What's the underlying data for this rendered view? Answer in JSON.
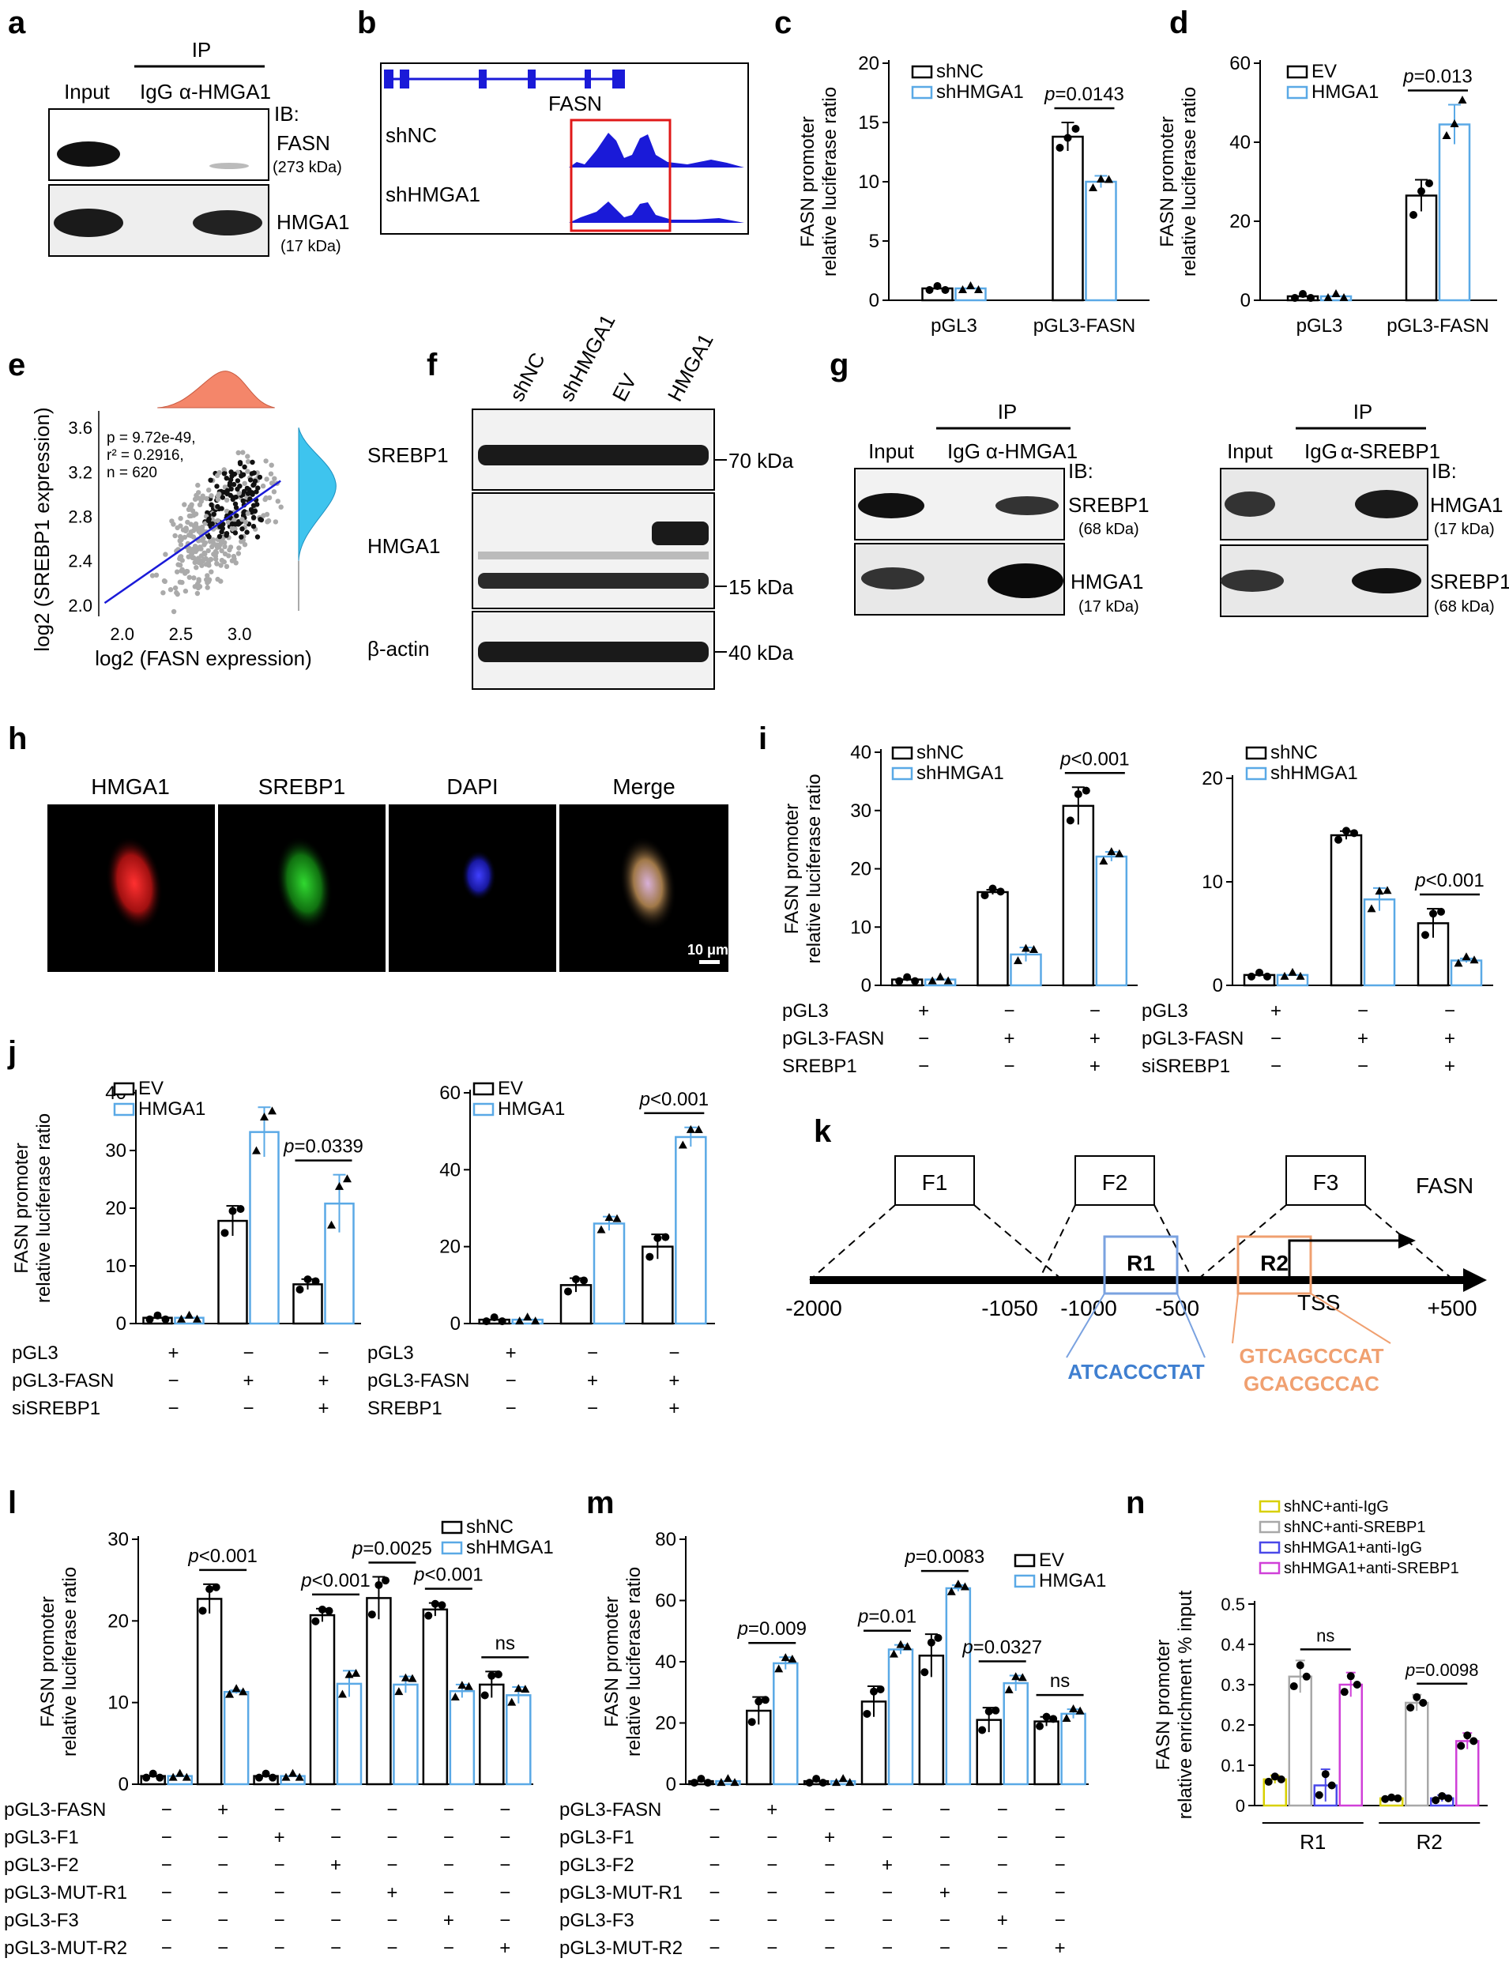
{
  "panel_letters": {
    "a": "a",
    "b": "b",
    "c": "c",
    "d": "d",
    "e": "e",
    "f": "f",
    "g": "g",
    "h": "h",
    "i": "i",
    "j": "j",
    "k": "k",
    "l": "l",
    "m": "m",
    "n": "n"
  },
  "panel_a": {
    "ip": "IP",
    "lanes": [
      "Input",
      "IgG",
      "α-HMGA1"
    ],
    "ib": "IB:",
    "bands": [
      {
        "label": "FASN",
        "kda": "(273 kDa)"
      },
      {
        "label": "HMGA1",
        "kda": "(17 kDa)"
      }
    ]
  },
  "panel_b": {
    "gene": "FASN",
    "tracks": [
      "shNC",
      "shHMGA1"
    ]
  },
  "panel_c": {
    "chart_data": {
      "type": "bar",
      "ylabel": "FASN promoter\nrelative luciferase ratio",
      "ylim": [
        0,
        20
      ],
      "yticks": [
        0,
        5,
        10,
        15,
        20
      ],
      "categories": [
        "pGL3",
        "pGL3-FASN"
      ],
      "series": [
        {
          "name": "shNC",
          "values": [
            1.0,
            13.8
          ],
          "sd": [
            0,
            1.2
          ],
          "points": [
            [
              1,
              1,
              1
            ],
            [
              13,
              13.5,
              14.6
            ]
          ]
        },
        {
          "name": "shHMGA1",
          "values": [
            1.0,
            10.0
          ],
          "sd": [
            0,
            0.5
          ],
          "points": [
            [
              1,
              1,
              1
            ],
            [
              9.6,
              10,
              10.3
            ]
          ]
        }
      ],
      "annotations": [
        {
          "text": "p=0.0143",
          "between": "pGL3-FASN"
        }
      ]
    }
  },
  "panel_d": {
    "chart_data": {
      "type": "bar",
      "ylabel": "FASN promoter\nrelative luciferase ratio",
      "ylim": [
        0,
        60
      ],
      "yticks": [
        0,
        20,
        40,
        60
      ],
      "categories": [
        "pGL3",
        "pGL3-FASN"
      ],
      "series": [
        {
          "name": "EV",
          "values": [
            1.0,
            26.5
          ],
          "sd": [
            0,
            4
          ],
          "points": [
            [
              1,
              1,
              1
            ],
            [
              22,
              27,
              30
            ]
          ]
        },
        {
          "name": "HMGA1",
          "values": [
            1.0,
            44.5
          ],
          "sd": [
            0,
            5
          ],
          "points": [
            [
              1,
              1,
              1
            ],
            [
              42,
              44,
              51
            ]
          ]
        }
      ],
      "annotations": [
        {
          "text": "p=0.013",
          "between": "pGL3-FASN"
        }
      ]
    }
  },
  "panel_e": {
    "chart_data": {
      "type": "scatter",
      "xlabel": "log2 (FASN expression)",
      "ylabel": "log2 (SREBP1 expression)",
      "xticks": [
        "2.0",
        "2.5",
        "3.0"
      ],
      "yticks": [
        "2.0",
        "2.4",
        "2.8",
        "3.2",
        "3.6"
      ],
      "xlim": [
        1.8,
        3.45
      ],
      "ylim": [
        1.9,
        3.75
      ],
      "stats": [
        "p = 9.72e-49,",
        "r² = 0.2916,",
        "n = 620"
      ],
      "fit": {
        "x1": 1.85,
        "y1": 2.02,
        "x2": 3.35,
        "y2": 3.12
      }
    }
  },
  "panel_f": {
    "lanes": [
      "shNC",
      "shHMGA1",
      "EV",
      "HMGA1"
    ],
    "rows": [
      "SREBP1",
      "HMGA1",
      "β-actin"
    ],
    "markers": [
      "70 kDa",
      "15 kDa",
      "40 kDa"
    ]
  },
  "panel_g": {
    "left": {
      "ip": "IP",
      "lanes": [
        "Input",
        "IgG",
        "α-HMGA1"
      ],
      "ib": "IB:",
      "bands": [
        {
          "label": "SREBP1",
          "kda": "(68 kDa)"
        },
        {
          "label": "HMGA1",
          "kda": "(17 kDa)"
        }
      ]
    },
    "right": {
      "ip": "IP",
      "lanes": [
        "Input",
        "IgG",
        "α-SREBP1"
      ],
      "ib": "IB:",
      "bands": [
        {
          "label": "HMGA1",
          "kda": "(17 kDa)"
        },
        {
          "label": "SREBP1",
          "kda": "(68 kDa)"
        }
      ]
    }
  },
  "panel_h": {
    "channels": [
      "HMGA1",
      "SREBP1",
      "DAPI",
      "Merge"
    ],
    "scale": "10 μm"
  },
  "panel_i": [
    {
      "chart_data": {
        "type": "bar",
        "ylabel": "FASN promoter\nrelative luciferase ratio",
        "ylim": [
          0,
          40
        ],
        "yticks": [
          0,
          10,
          20,
          30,
          40
        ],
        "series": [
          {
            "name": "shNC",
            "values": [
              1.0,
              16.0,
              30.8
            ],
            "sd": [
              0,
              0.4,
              3.2
            ]
          },
          {
            "name": "shHMGA1",
            "values": [
              1.0,
              5.3,
              22.1
            ],
            "sd": [
              0,
              1.2,
              0.8
            ]
          }
        ],
        "annotations": [
          {
            "text": "p<0.001",
            "group": 3
          }
        ],
        "rows": [
          {
            "label": "pGL3",
            "signs": [
              "+",
              "-",
              "-"
            ]
          },
          {
            "label": "pGL3-FASN",
            "signs": [
              "-",
              "+",
              "+"
            ]
          },
          {
            "label": "SREBP1",
            "signs": [
              "-",
              "-",
              "+"
            ]
          }
        ]
      }
    },
    {
      "chart_data": {
        "type": "bar",
        "ylabel": "",
        "ylim": [
          0,
          20
        ],
        "yticks": [
          0,
          10,
          20
        ],
        "series": [
          {
            "name": "shNC",
            "values": [
              1.0,
              14.5,
              6.0
            ],
            "sd": [
              0,
              0.4,
              1.4
            ]
          },
          {
            "name": "shHMGA1",
            "values": [
              1.0,
              8.3,
              2.4
            ],
            "sd": [
              0,
              1.1,
              0.2
            ]
          }
        ],
        "annotations": [
          {
            "text": "p<0.001",
            "group": 3
          }
        ],
        "rows": [
          {
            "label": "pGL3",
            "signs": [
              "+",
              "-",
              "-"
            ]
          },
          {
            "label": "pGL3-FASN",
            "signs": [
              "-",
              "+",
              "+"
            ]
          },
          {
            "label": "siSREBP1",
            "signs": [
              "-",
              "-",
              "+"
            ]
          }
        ]
      }
    }
  ],
  "panel_j": [
    {
      "chart_data": {
        "type": "bar",
        "ylabel": "FASN promoter\nrelative luciferase ratio",
        "ylim": [
          0,
          40
        ],
        "yticks": [
          0,
          10,
          20,
          30,
          40
        ],
        "series": [
          {
            "name": "EV",
            "values": [
              1.0,
              17.8,
              6.8
            ],
            "sd": [
              0,
              2.6,
              0.9
            ]
          },
          {
            "name": "HMGA1",
            "values": [
              1.0,
              33.2,
              20.8
            ],
            "sd": [
              0,
              4.3,
              5.0
            ]
          }
        ],
        "annotations": [
          {
            "text": "p=0.0339",
            "group": 3
          }
        ],
        "rows": [
          {
            "label": "pGL3",
            "signs": [
              "+",
              "-",
              "-"
            ]
          },
          {
            "label": "pGL3-FASN",
            "signs": [
              "-",
              "+",
              "+"
            ]
          },
          {
            "label": "siSREBP1",
            "signs": [
              "-",
              "-",
              "+"
            ]
          }
        ]
      }
    },
    {
      "chart_data": {
        "type": "bar",
        "ylabel": "",
        "ylim": [
          0,
          60
        ],
        "yticks": [
          0,
          20,
          40,
          60
        ],
        "series": [
          {
            "name": "EV",
            "values": [
              1.0,
              10.0,
              20.0
            ],
            "sd": [
              0,
              1.8,
              3.2
            ]
          },
          {
            "name": "HMGA1",
            "values": [
              1.0,
              26.0,
              48.5
            ],
            "sd": [
              0,
              1.8,
              2.5
            ]
          }
        ],
        "annotations": [
          {
            "text": "p<0.001",
            "group": 3
          }
        ],
        "rows": [
          {
            "label": "pGL3",
            "signs": [
              "+",
              "-",
              "-"
            ]
          },
          {
            "label": "pGL3-FASN",
            "signs": [
              "-",
              "+",
              "+"
            ]
          },
          {
            "label": "SREBP1",
            "signs": [
              "-",
              "-",
              "+"
            ]
          }
        ]
      }
    }
  ],
  "panel_k": {
    "fragments": [
      "F1",
      "F2",
      "F3"
    ],
    "regions": [
      "R1",
      "R2"
    ],
    "gene": "FASN",
    "tss": "TSS",
    "positions": [
      "-2000",
      "-1050",
      "-1000",
      "-500",
      "+500"
    ],
    "seq_r1": "ATCACCCTAT",
    "seq_r2": [
      "GTCAGCCCAT",
      "GCACGCCAC"
    ]
  },
  "panel_l": {
    "chart_data": {
      "type": "bar",
      "ylabel": "FASN promoter\nrelative luciferase ratio",
      "ylim": [
        0,
        30
      ],
      "yticks": [
        0,
        10,
        20,
        30
      ],
      "series": [
        {
          "name": "shNC",
          "values": [
            1.0,
            22.7,
            1.0,
            20.7,
            22.8,
            21.4,
            12.2
          ],
          "sd": [
            0,
            1.8,
            0,
            0.8,
            2.6,
            0.8,
            1.6
          ]
        },
        {
          "name": "shHMGA1",
          "values": [
            1.0,
            11.3,
            1.0,
            12.3,
            12.2,
            11.4,
            10.9
          ],
          "sd": [
            0,
            0.2,
            0,
            1.6,
            1.0,
            0.8,
            1.0
          ]
        }
      ],
      "annotations": [
        {
          "text": "p<0.001",
          "group": 2
        },
        {
          "text": "p<0.001",
          "group": 4
        },
        {
          "text": "p=0.0025",
          "group": 5
        },
        {
          "text": "p<0.001",
          "group": 6
        },
        {
          "text": "ns",
          "group": 7
        }
      ],
      "rows": [
        {
          "label": "pGL3-FASN",
          "signs": [
            "-",
            "+",
            "-",
            "-",
            "-",
            "-",
            "-"
          ]
        },
        {
          "label": "pGL3-F1",
          "signs": [
            "-",
            "-",
            "+",
            "-",
            "-",
            "-",
            "-"
          ]
        },
        {
          "label": "pGL3-F2",
          "signs": [
            "-",
            "-",
            "-",
            "+",
            "-",
            "-",
            "-"
          ]
        },
        {
          "label": "pGL3-MUT-R1",
          "signs": [
            "-",
            "-",
            "-",
            "-",
            "+",
            "-",
            "-"
          ]
        },
        {
          "label": "pGL3-F3",
          "signs": [
            "-",
            "-",
            "-",
            "-",
            "-",
            "+",
            "-"
          ]
        },
        {
          "label": "pGL3-MUT-R2",
          "signs": [
            "-",
            "-",
            "-",
            "-",
            "-",
            "-",
            "+"
          ]
        }
      ]
    }
  },
  "panel_m": {
    "chart_data": {
      "type": "bar",
      "ylabel": "FASN promoter\nrelative luciferase ratio",
      "ylim": [
        0,
        80
      ],
      "yticks": [
        0,
        20,
        40,
        60,
        80
      ],
      "series": [
        {
          "name": "EV",
          "values": [
            1.0,
            24.0,
            1.0,
            27.0,
            42.0,
            21.0,
            20.5
          ],
          "sd": [
            0,
            4.5,
            0,
            5.0,
            7.0,
            4.0,
            1.5
          ]
        },
        {
          "name": "HMGA1",
          "values": [
            1.0,
            39.5,
            1.0,
            44.0,
            64.0,
            33.0,
            23.0
          ],
          "sd": [
            0,
            2.0,
            0,
            1.5,
            1.0,
            2.5,
            1.5
          ]
        }
      ],
      "annotations": [
        {
          "text": "p=0.009",
          "group": 2
        },
        {
          "text": "p=0.01",
          "group": 4
        },
        {
          "text": "p=0.0083",
          "group": 5
        },
        {
          "text": "p=0.0327",
          "group": 6
        },
        {
          "text": "ns",
          "group": 7
        }
      ],
      "rows": [
        {
          "label": "pGL3-FASN",
          "signs": [
            "-",
            "+",
            "-",
            "-",
            "-",
            "-",
            "-"
          ]
        },
        {
          "label": "pGL3-F1",
          "signs": [
            "-",
            "-",
            "+",
            "-",
            "-",
            "-",
            "-"
          ]
        },
        {
          "label": "pGL3-F2",
          "signs": [
            "-",
            "-",
            "-",
            "+",
            "-",
            "-",
            "-"
          ]
        },
        {
          "label": "pGL3-MUT-R1",
          "signs": [
            "-",
            "-",
            "-",
            "-",
            "+",
            "-",
            "-"
          ]
        },
        {
          "label": "pGL3-F3",
          "signs": [
            "-",
            "-",
            "-",
            "-",
            "-",
            "+",
            "-"
          ]
        },
        {
          "label": "pGL3-MUT-R2",
          "signs": [
            "-",
            "-",
            "-",
            "-",
            "-",
            "-",
            "+"
          ]
        }
      ]
    }
  },
  "panel_n": {
    "chart_data": {
      "type": "bar",
      "ylabel": "FASN promoter\nrelative enrichment % input",
      "ylim": [
        0,
        0.5
      ],
      "yticks": [
        "0",
        "0.1",
        "0.2",
        "0.3",
        "0.4",
        "0.5"
      ],
      "categories": [
        "R1",
        "R2"
      ],
      "series": [
        {
          "name": "shNC+anti-IgG",
          "color": "#d8d000",
          "values": [
            0.065,
            0.018
          ],
          "sd": [
            0.01,
            0.003
          ]
        },
        {
          "name": "shNC+anti-SREBP1",
          "color": "#a8a8a8",
          "values": [
            0.32,
            0.255
          ],
          "sd": [
            0.04,
            0.02
          ]
        },
        {
          "name": "shHMGA1+anti-IgG",
          "color": "#4a48e8",
          "values": [
            0.05,
            0.018
          ],
          "sd": [
            0.04,
            0.008
          ]
        },
        {
          "name": "shHMGA1+anti-SREBP1",
          "color": "#d040d8",
          "values": [
            0.3,
            0.16
          ],
          "sd": [
            0.03,
            0.02
          ]
        }
      ],
      "annotations": [
        {
          "text": "ns",
          "group": 1
        },
        {
          "text": "p=0.0098",
          "group": 2
        }
      ]
    }
  }
}
